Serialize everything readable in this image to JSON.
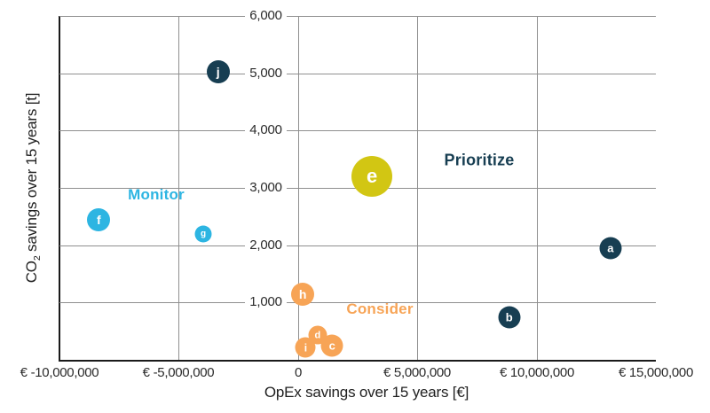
{
  "chart_data": {
    "type": "scatter",
    "title": "",
    "xlabel": "OpEx savings over 15 years [€]",
    "ylabel_parts": [
      {
        "text": "CO",
        "subscript": false
      },
      {
        "text": "2",
        "subscript": true
      },
      {
        "text": " savings over 15 years [t]",
        "subscript": false
      }
    ],
    "xlim": [
      -10000000,
      15000000
    ],
    "ylim": [
      0,
      6000
    ],
    "grid": true,
    "legend_position": "none",
    "x_ticks": [
      {
        "value": -10000000,
        "label": "€ -10,000,000"
      },
      {
        "value": -5000000,
        "label": "€ -5,000,000"
      },
      {
        "value": 0,
        "label": "0"
      },
      {
        "value": 5000000,
        "label": "€ 5,000,000"
      },
      {
        "value": 10000000,
        "label": "€ 10,000,000"
      },
      {
        "value": 15000000,
        "label": "€ 15,000,000"
      }
    ],
    "y_ticks": [
      {
        "value": 1000,
        "label": "1,000"
      },
      {
        "value": 2000,
        "label": "2,000"
      },
      {
        "value": 3000,
        "label": "3,000"
      },
      {
        "value": 4000,
        "label": "4,000"
      },
      {
        "value": 5000,
        "label": "5,000"
      },
      {
        "value": 6000,
        "label": "6,000"
      }
    ],
    "x_gridlines": [
      -5000000,
      0,
      5000000,
      10000000
    ],
    "y_gridlines": [
      1000,
      2000,
      3000,
      4000,
      5000,
      6000
    ],
    "colors": {
      "prioritize": "#173e52",
      "monitor": "#2db5e2",
      "consider": "#f7a456",
      "highlight": "#d2c613"
    },
    "points": [
      {
        "id": "a",
        "x": 13100000,
        "y": 1950,
        "r": 12.5,
        "group": "prioritize"
      },
      {
        "id": "b",
        "x": 8850000,
        "y": 740,
        "r": 12.5,
        "group": "prioritize"
      },
      {
        "id": "d",
        "x": 820000,
        "y": 430,
        "r": 10.5,
        "group": "consider"
      },
      {
        "id": "c",
        "x": 1430000,
        "y": 250,
        "r": 12.5,
        "group": "consider"
      },
      {
        "id": "e",
        "x": 3100000,
        "y": 3200,
        "r": 23,
        "group": "highlight"
      },
      {
        "id": "f",
        "x": -8350000,
        "y": 2450,
        "r": 13,
        "group": "monitor"
      },
      {
        "id": "g",
        "x": -3970000,
        "y": 2190,
        "r": 9.5,
        "group": "monitor"
      },
      {
        "id": "h",
        "x": 200000,
        "y": 1140,
        "r": 13,
        "group": "consider"
      },
      {
        "id": "i",
        "x": 320000,
        "y": 215,
        "r": 11.5,
        "group": "consider"
      },
      {
        "id": "j",
        "x": -3350000,
        "y": 5025,
        "r": 13,
        "group": "prioritize"
      }
    ],
    "annotations": [
      {
        "text": "Monitor",
        "x": -5950000,
        "y": 2880,
        "group": "monitor"
      },
      {
        "text": "Prioritize",
        "x": 7600000,
        "y": 3480,
        "group": "prioritize"
      },
      {
        "text": "Consider",
        "x": 3420000,
        "y": 880,
        "group": "consider"
      }
    ]
  }
}
